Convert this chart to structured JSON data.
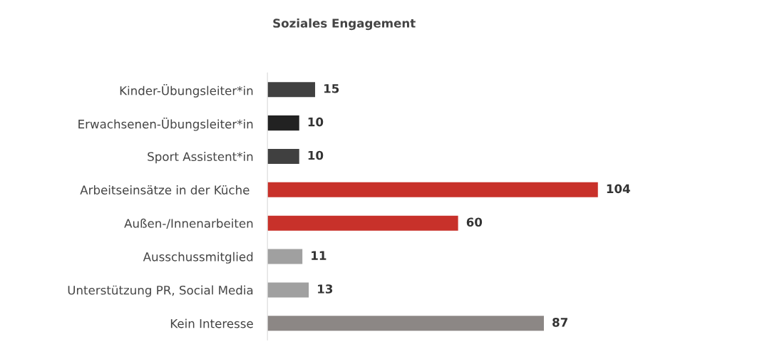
{
  "chart_data": {
    "type": "bar",
    "title": "Soziales Engagement",
    "orientation": "horizontal",
    "categories": [
      "Kinder-Übungsleiter*in",
      "Erwachsenen-Übungsleiter*in",
      "Sport Assistent*in",
      "Arbeitseinsätze in der Küche ",
      "Außen-/Innenarbeiten",
      "Ausschussmitglied",
      "Unterstützung PR, Social Media",
      "Kein Interesse"
    ],
    "values": [
      15,
      10,
      10,
      104,
      60,
      11,
      13,
      87
    ],
    "colors": [
      "#404040",
      "#222222",
      "#404040",
      "#c8312a",
      "#c8312a",
      "#a0a0a0",
      "#a0a0a0",
      "#8c8785"
    ],
    "data_labels": true,
    "grid": false,
    "legend": false,
    "tick_labels": "y"
  }
}
